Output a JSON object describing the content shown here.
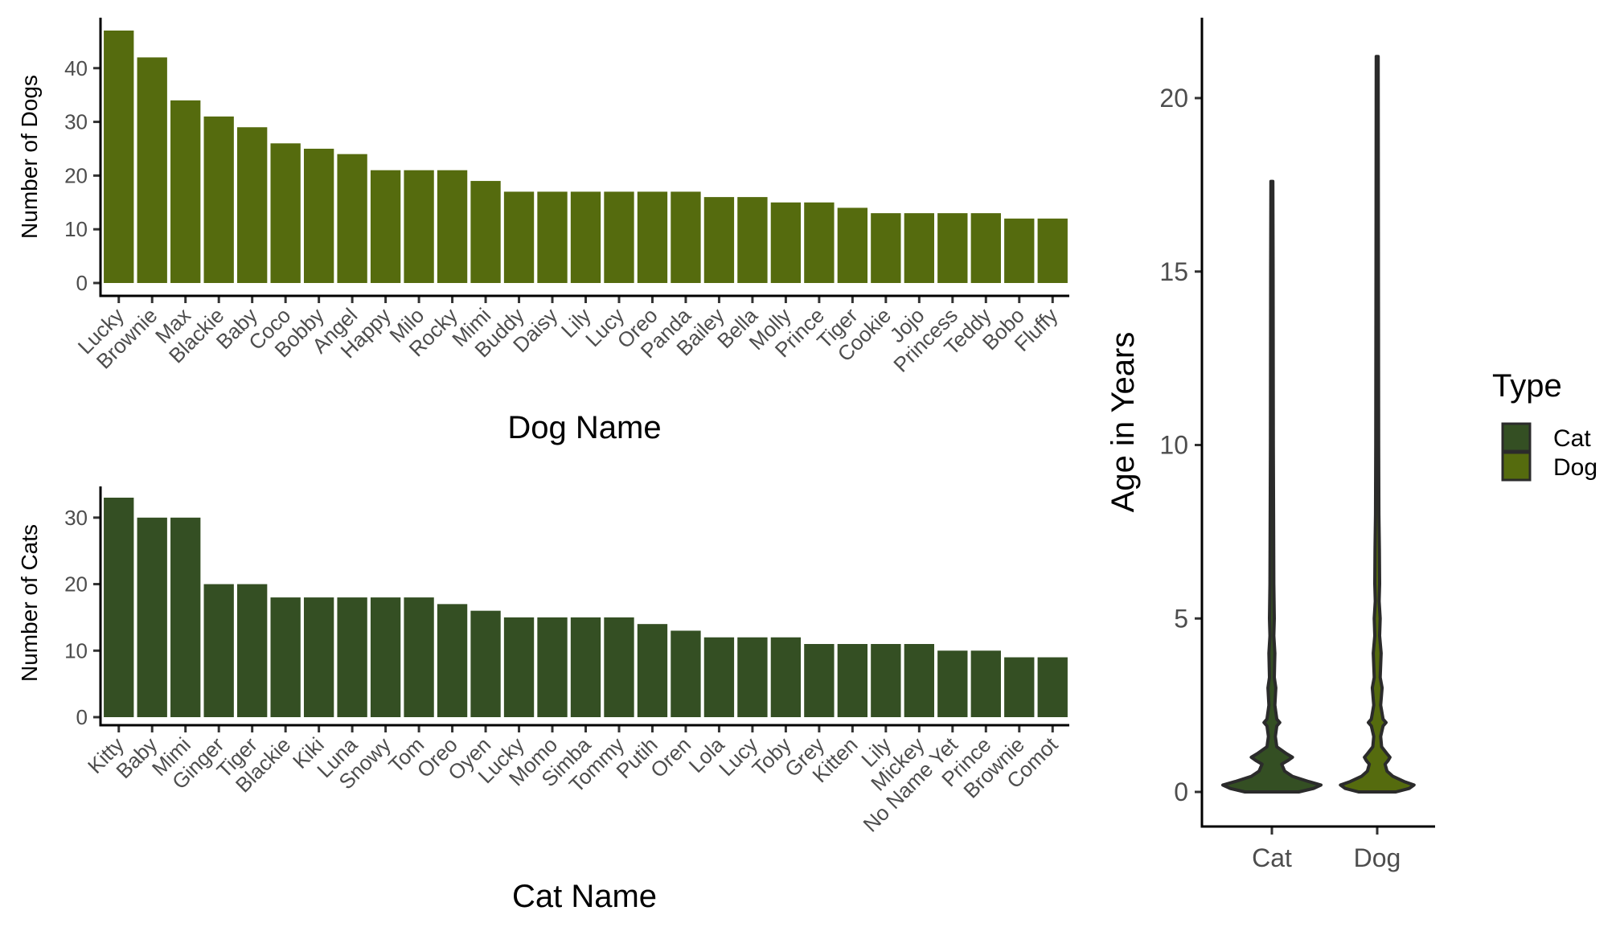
{
  "colors": {
    "dog": "#556B0E",
    "cat": "#344F23",
    "outline": "#2b2b2b"
  },
  "chart_data": [
    {
      "type": "bar",
      "xlabel": "Dog Name",
      "ylabel": "Number of Dogs",
      "ylim": [
        0,
        47
      ],
      "yticks": [
        0,
        10,
        20,
        30,
        40
      ],
      "series": [
        {
          "name": "Dog",
          "color": "#556B0E"
        }
      ],
      "categories": [
        "Lucky",
        "Brownie",
        "Max",
        "Blackie",
        "Baby",
        "Coco",
        "Bobby",
        "Angel",
        "Happy",
        "Milo",
        "Rocky",
        "Mimi",
        "Buddy",
        "Daisy",
        "Lily",
        "Lucy",
        "Oreo",
        "Panda",
        "Bailey",
        "Bella",
        "Molly",
        "Prince",
        "Tiger",
        "Cookie",
        "Jojo",
        "Princess",
        "Teddy",
        "Bobo",
        "Fluffy"
      ],
      "values": [
        47,
        42,
        34,
        31,
        29,
        26,
        25,
        24,
        21,
        21,
        21,
        19,
        17,
        17,
        17,
        17,
        17,
        17,
        16,
        16,
        15,
        15,
        14,
        13,
        13,
        13,
        13,
        12,
        12
      ]
    },
    {
      "type": "bar",
      "xlabel": "Cat Name",
      "ylabel": "Number of Cats",
      "ylim": [
        0,
        33
      ],
      "yticks": [
        0,
        10,
        20,
        30
      ],
      "series": [
        {
          "name": "Cat",
          "color": "#344F23"
        }
      ],
      "categories": [
        "Kitty",
        "Baby",
        "Mimi",
        "Ginger",
        "Tiger",
        "Blackie",
        "Kiki",
        "Luna",
        "Snowy",
        "Tom",
        "Oreo",
        "Oyen",
        "Lucky",
        "Momo",
        "Simba",
        "Tommy",
        "Putih",
        "Oren",
        "Lola",
        "Lucy",
        "Toby",
        "Grey",
        "Kitten",
        "Lily",
        "Mickey",
        "No Name Yet",
        "Prince",
        "Brownie",
        "Comot"
      ],
      "values": [
        33,
        30,
        30,
        20,
        20,
        18,
        18,
        18,
        18,
        18,
        17,
        16,
        15,
        15,
        15,
        15,
        14,
        13,
        12,
        12,
        12,
        11,
        11,
        11,
        11,
        10,
        10,
        9,
        9
      ]
    },
    {
      "type": "violin",
      "xlabel": "",
      "ylabel": "Age in Years",
      "ylim": [
        -1,
        22
      ],
      "yticks": [
        0,
        5,
        10,
        15,
        20
      ],
      "categories": [
        "Cat",
        "Dog"
      ],
      "legend": {
        "title": "Type",
        "position": "right",
        "entries": [
          "Cat",
          "Dog"
        ]
      },
      "series": [
        {
          "name": "Cat",
          "color": "#344F23",
          "min": 0,
          "max": 17.6,
          "profile": [
            [
              0,
              0.55
            ],
            [
              0.1,
              0.85
            ],
            [
              0.2,
              1.0
            ],
            [
              0.3,
              0.75
            ],
            [
              0.45,
              0.42
            ],
            [
              0.6,
              0.26
            ],
            [
              0.8,
              0.2
            ],
            [
              0.9,
              0.32
            ],
            [
              1.0,
              0.42
            ],
            [
              1.1,
              0.3
            ],
            [
              1.3,
              0.1
            ],
            [
              1.6,
              0.07
            ],
            [
              1.9,
              0.1
            ],
            [
              2.0,
              0.16
            ],
            [
              2.1,
              0.1
            ],
            [
              2.5,
              0.06
            ],
            [
              3.0,
              0.08
            ],
            [
              3.3,
              0.05
            ],
            [
              4.0,
              0.06
            ],
            [
              4.5,
              0.04
            ],
            [
              5.0,
              0.05
            ],
            [
              6.0,
              0.04
            ],
            [
              8.0,
              0.035
            ],
            [
              10.0,
              0.03
            ],
            [
              15.0,
              0.025
            ],
            [
              17.6,
              0.02
            ]
          ]
        },
        {
          "name": "Dog",
          "color": "#556B0E",
          "min": 0,
          "max": 21.2,
          "profile": [
            [
              0,
              0.38
            ],
            [
              0.1,
              0.65
            ],
            [
              0.2,
              0.75
            ],
            [
              0.3,
              0.55
            ],
            [
              0.45,
              0.32
            ],
            [
              0.6,
              0.2
            ],
            [
              0.8,
              0.16
            ],
            [
              0.9,
              0.22
            ],
            [
              1.0,
              0.26
            ],
            [
              1.1,
              0.2
            ],
            [
              1.3,
              0.09
            ],
            [
              1.6,
              0.07
            ],
            [
              1.9,
              0.12
            ],
            [
              2.0,
              0.18
            ],
            [
              2.1,
              0.12
            ],
            [
              2.5,
              0.07
            ],
            [
              3.0,
              0.1
            ],
            [
              3.3,
              0.06
            ],
            [
              4.0,
              0.08
            ],
            [
              4.5,
              0.05
            ],
            [
              5.0,
              0.06
            ],
            [
              5.5,
              0.04
            ],
            [
              6.0,
              0.05
            ],
            [
              7.0,
              0.045
            ],
            [
              8.0,
              0.035
            ],
            [
              10.0,
              0.03
            ],
            [
              15.0,
              0.025
            ],
            [
              21.2,
              0.02
            ]
          ]
        }
      ]
    }
  ]
}
